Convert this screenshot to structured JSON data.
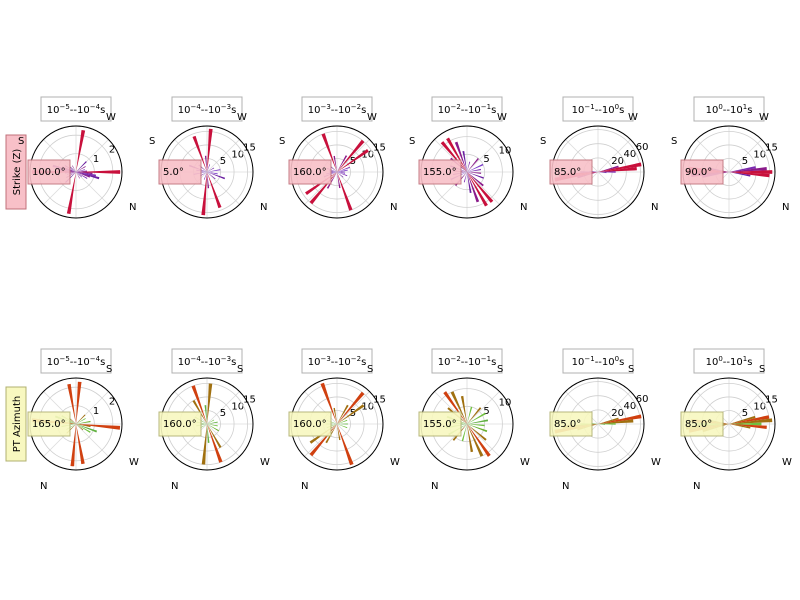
{
  "rows": [
    {
      "row_label": "Strike (Z)",
      "label_bg": "#f8c0c8",
      "label_border": "#c0707a",
      "compass": {
        "a": "S",
        "b": "W",
        "c": "N"
      }
    },
    {
      "row_label": "PT Azimuth",
      "label_bg": "#f8f8c0",
      "label_border": "#b0b070",
      "compass": {
        "a": "",
        "b": "S",
        "c": "W",
        "d": "N"
      }
    }
  ],
  "chart_data": [
    {
      "type": "polar-rose",
      "row": 0,
      "title": {
        "base_a": "10",
        "exp_a": "−5",
        "base_b": "10",
        "exp_b": "−4",
        "unit": "s"
      },
      "value_label": "100.0°",
      "rticks": [
        "1",
        "2"
      ],
      "rmax": 2.5,
      "bars": [
        [
          10,
          2.3,
          "#c8103c"
        ],
        [
          45,
          0.8,
          "#6a1fa0"
        ],
        [
          60,
          0.6,
          "#8a1a8a"
        ],
        [
          75,
          0.5,
          "#7a2ab0"
        ],
        [
          85,
          0.6,
          "#7a2ab0"
        ],
        [
          90,
          2.4,
          "#c8103c"
        ],
        [
          95,
          0.9,
          "#8a1a8a"
        ],
        [
          100,
          1.1,
          "#7a2ab0"
        ],
        [
          105,
          1.3,
          "#6a1fa0"
        ],
        [
          110,
          0.8,
          "#8a1a8a"
        ],
        [
          120,
          0.7,
          "#7a2ab0"
        ],
        [
          130,
          0.4,
          "#6a1fa0"
        ],
        [
          150,
          0.4,
          "#8a1a8a"
        ]
      ]
    },
    {
      "type": "polar-rose",
      "row": 0,
      "title": {
        "base_a": "10",
        "exp_a": "−4",
        "base_b": "10",
        "exp_b": "−3",
        "unit": "s"
      },
      "value_label": "5.0°",
      "rticks": [
        "5",
        "10",
        "15"
      ],
      "rmax": 17,
      "bars": [
        [
          5,
          16,
          "#c8103c"
        ],
        [
          20,
          3,
          "#7a2ab0"
        ],
        [
          60,
          3,
          "#6a1fa0"
        ],
        [
          80,
          5,
          "#7a3ac8"
        ],
        [
          100,
          4,
          "#7a3ac8"
        ],
        [
          110,
          7,
          "#6a1fa0"
        ],
        [
          130,
          4,
          "#7a2ab0"
        ],
        [
          160,
          14,
          "#c8103c"
        ],
        [
          175,
          6,
          "#8a1a8a"
        ]
      ]
    },
    {
      "type": "polar-rose",
      "row": 0,
      "title": {
        "base_a": "10",
        "exp_a": "−3",
        "base_b": "10",
        "exp_b": "−2",
        "unit": "s"
      },
      "value_label": "160.0°",
      "rticks": [
        "5",
        "10",
        "15"
      ],
      "rmax": 17,
      "bars": [
        [
          30,
          7,
          "#8a1a8a"
        ],
        [
          40,
          15,
          "#c8103c"
        ],
        [
          55,
          14,
          "#c8103c"
        ],
        [
          70,
          5,
          "#7a2ab0"
        ],
        [
          80,
          4,
          "#7a3ac8"
        ],
        [
          90,
          3,
          "#6a1fa0"
        ],
        [
          100,
          3,
          "#7a3ac8"
        ],
        [
          110,
          4,
          "#7a2ab0"
        ],
        [
          130,
          3,
          "#6a1fa0"
        ],
        [
          160,
          15,
          "#c8103c"
        ],
        [
          170,
          6,
          "#8a1a8a"
        ]
      ]
    },
    {
      "type": "polar-rose",
      "row": 0,
      "title": {
        "base_a": "10",
        "exp_a": "−2",
        "base_b": "10",
        "exp_b": "−1",
        "unit": "s"
      },
      "value_label": "155.0°",
      "rticks": [
        "5",
        "10"
      ],
      "rmax": 13,
      "bars": [
        [
          15,
          3,
          "#7a2ab0"
        ],
        [
          40,
          5,
          "#8a1a8a"
        ],
        [
          65,
          5,
          "#7a3ac8"
        ],
        [
          80,
          4,
          "#7a2ab0"
        ],
        [
          95,
          4,
          "#8a1a8a"
        ],
        [
          110,
          5,
          "#6a1fa0"
        ],
        [
          130,
          6,
          "#8a1a8a"
        ],
        [
          140,
          11,
          "#c8103c"
        ],
        [
          150,
          11,
          "#c8103c"
        ],
        [
          160,
          9,
          "#8a1a8a"
        ],
        [
          170,
          6,
          "#6a1fa0"
        ]
      ]
    },
    {
      "type": "polar-rose",
      "row": 0,
      "title": {
        "base_a": "10",
        "exp_a": "−1",
        "base_b": "10",
        "exp_b": "0",
        "unit": "s"
      },
      "value_label": "85.0°",
      "rticks": [
        "20",
        "40",
        "60"
      ],
      "rmax": 65,
      "bars": [
        [
          75,
          30,
          "#8a1a8a"
        ],
        [
          80,
          62,
          "#c8103c"
        ],
        [
          85,
          55,
          "#c8103c"
        ],
        [
          90,
          25,
          "#7a2ab0"
        ],
        [
          95,
          12,
          "#6a1fa0"
        ]
      ]
    },
    {
      "type": "polar-rose",
      "row": 0,
      "title": {
        "base_a": "10",
        "exp_a": "0",
        "base_b": "10",
        "exp_b": "1",
        "unit": "s"
      },
      "value_label": "90.0°",
      "rticks": [
        "5",
        "10",
        "15"
      ],
      "rmax": 17,
      "bars": [
        [
          80,
          10,
          "#7a2ab0"
        ],
        [
          85,
          14,
          "#8a1a8a"
        ],
        [
          90,
          16,
          "#c8103c"
        ],
        [
          95,
          15,
          "#c8103c"
        ],
        [
          100,
          8,
          "#6a1fa0"
        ]
      ]
    },
    {
      "type": "polar-rose",
      "row": 1,
      "title": {
        "base_a": "10",
        "exp_a": "−5",
        "base_b": "10",
        "exp_b": "−4",
        "unit": "s"
      },
      "value_label": "165.0°",
      "rticks": [
        "1",
        "2"
      ],
      "rmax": 2.5,
      "bars": [
        [
          5,
          2.3,
          "#d04010"
        ],
        [
          45,
          0.7,
          "#a07010"
        ],
        [
          60,
          0.6,
          "#70c040"
        ],
        [
          80,
          0.8,
          "#6ab030"
        ],
        [
          95,
          2.4,
          "#d04010"
        ],
        [
          100,
          0.8,
          "#a07010"
        ],
        [
          110,
          1.2,
          "#60b040"
        ],
        [
          120,
          0.9,
          "#70c040"
        ],
        [
          130,
          0.5,
          "#a07010"
        ],
        [
          170,
          2.2,
          "#d04010"
        ]
      ]
    },
    {
      "type": "polar-rose",
      "row": 1,
      "title": {
        "base_a": "10",
        "exp_a": "−4",
        "base_b": "10",
        "exp_b": "−3",
        "unit": "s"
      },
      "value_label": "160.0°",
      "rticks": [
        "5",
        "10",
        "15"
      ],
      "rmax": 17,
      "bars": [
        [
          5,
          15,
          "#a07010"
        ],
        [
          60,
          3,
          "#70c040"
        ],
        [
          80,
          4,
          "#60b040"
        ],
        [
          100,
          4,
          "#70c040"
        ],
        [
          120,
          5,
          "#6ab030"
        ],
        [
          150,
          10,
          "#a07010"
        ],
        [
          160,
          15,
          "#d04010"
        ],
        [
          175,
          7,
          "#60b040"
        ]
      ]
    },
    {
      "type": "polar-rose",
      "row": 1,
      "title": {
        "base_a": "10",
        "exp_a": "−3",
        "base_b": "10",
        "exp_b": "−2",
        "unit": "s"
      },
      "value_label": "160.0°",
      "rticks": [
        "5",
        "10",
        "15"
      ],
      "rmax": 17,
      "bars": [
        [
          30,
          8,
          "#a07010"
        ],
        [
          40,
          15,
          "#d04010"
        ],
        [
          55,
          12,
          "#a07010"
        ],
        [
          70,
          4,
          "#70c040"
        ],
        [
          90,
          4,
          "#60b040"
        ],
        [
          110,
          4,
          "#70c040"
        ],
        [
          160,
          16,
          "#d04010"
        ],
        [
          170,
          6,
          "#a07010"
        ]
      ]
    },
    {
      "type": "polar-rose",
      "row": 1,
      "title": {
        "base_a": "10",
        "exp_a": "−2",
        "base_b": "10",
        "exp_b": "−1",
        "unit": "s"
      },
      "value_label": "155.0°",
      "rticks": [
        "5",
        "10"
      ],
      "rmax": 13,
      "bars": [
        [
          15,
          5,
          "#70c040"
        ],
        [
          40,
          6,
          "#a07010"
        ],
        [
          60,
          6,
          "#70c040"
        ],
        [
          80,
          6,
          "#60b040"
        ],
        [
          95,
          5,
          "#70c040"
        ],
        [
          110,
          6,
          "#6ab030"
        ],
        [
          130,
          7,
          "#a07010"
        ],
        [
          145,
          11,
          "#d04010"
        ],
        [
          155,
          10,
          "#a07010"
        ],
        [
          170,
          8,
          "#a07010"
        ]
      ]
    },
    {
      "type": "polar-rose",
      "row": 1,
      "title": {
        "base_a": "10",
        "exp_a": "−1",
        "base_b": "10",
        "exp_b": "0",
        "unit": "s"
      },
      "value_label": "85.0°",
      "rticks": [
        "20",
        "40",
        "60"
      ],
      "rmax": 65,
      "bars": [
        [
          75,
          30,
          "#a07010"
        ],
        [
          80,
          62,
          "#d04010"
        ],
        [
          85,
          50,
          "#a07010"
        ],
        [
          90,
          25,
          "#70c040"
        ],
        [
          95,
          10,
          "#60b040"
        ]
      ]
    },
    {
      "type": "polar-rose",
      "row": 1,
      "title": {
        "base_a": "10",
        "exp_a": "0",
        "base_b": "10",
        "exp_b": "1",
        "unit": "s"
      },
      "value_label": "85.0°",
      "rticks": [
        "5",
        "10",
        "15"
      ],
      "rmax": 17,
      "bars": [
        [
          75,
          10,
          "#a07010"
        ],
        [
          80,
          15,
          "#d04010"
        ],
        [
          85,
          16,
          "#a07010"
        ],
        [
          90,
          12,
          "#70c040"
        ],
        [
          95,
          14,
          "#d04010"
        ],
        [
          100,
          8,
          "#a07010"
        ]
      ]
    }
  ]
}
